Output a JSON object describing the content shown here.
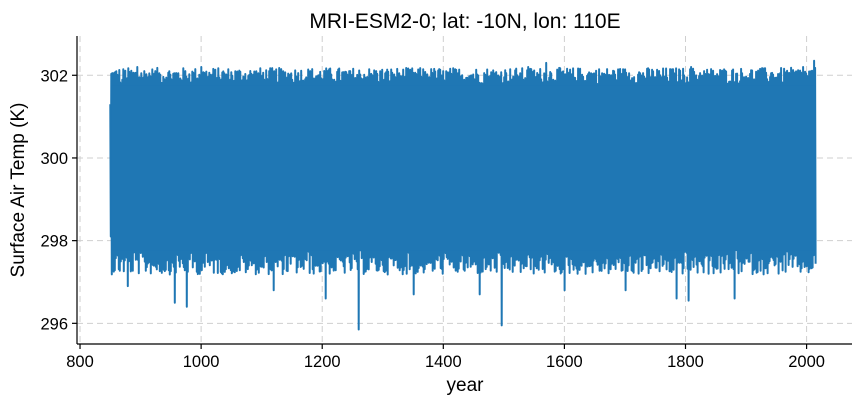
{
  "chart_data": {
    "type": "line",
    "title": "MRI-ESM2-0; lat: -10N, lon: 110E",
    "xlabel": "year",
    "ylabel": "Surface Air Temp (K)",
    "xlim": [
      795,
      2075
    ],
    "ylim": [
      295.5,
      302.95
    ],
    "xticks": [
      800,
      1000,
      1200,
      1400,
      1600,
      1800,
      2000
    ],
    "xtick_labels": [
      "800",
      "1000",
      "1200",
      "1400",
      "1600",
      "1800",
      "2000"
    ],
    "yticks": [
      296,
      298,
      300,
      302
    ],
    "ytick_labels": [
      "296",
      "298",
      "300",
      "302"
    ],
    "grid": true,
    "series": [
      {
        "color": "#1f77b4",
        "x_start": 850,
        "x_end": 2014,
        "band_upper": 301.9,
        "band_lower": 297.6,
        "max": 302.6,
        "min": 295.85,
        "peaks": [
          [
            868,
            301.8
          ],
          [
            895,
            302.2
          ],
          [
            1000,
            302.2
          ],
          [
            1120,
            302.6
          ],
          [
            1245,
            302.1
          ],
          [
            1400,
            302.1
          ],
          [
            1540,
            302.2
          ],
          [
            1570,
            302.3
          ],
          [
            1700,
            302.2
          ],
          [
            1810,
            302.2
          ],
          [
            1995,
            302.2
          ],
          [
            2012,
            302.35
          ]
        ],
        "troughs": [
          [
            878,
            296.9
          ],
          [
            955,
            296.5
          ],
          [
            975,
            296.4
          ],
          [
            1120,
            296.8
          ],
          [
            1205,
            296.6
          ],
          [
            1260,
            295.85
          ],
          [
            1350,
            296.7
          ],
          [
            1460,
            296.7
          ],
          [
            1495,
            295.95
          ],
          [
            1600,
            296.8
          ],
          [
            1700,
            296.8
          ],
          [
            1785,
            296.6
          ],
          [
            1805,
            296.55
          ],
          [
            1880,
            296.6
          ],
          [
            2010,
            297.35
          ]
        ]
      }
    ]
  }
}
